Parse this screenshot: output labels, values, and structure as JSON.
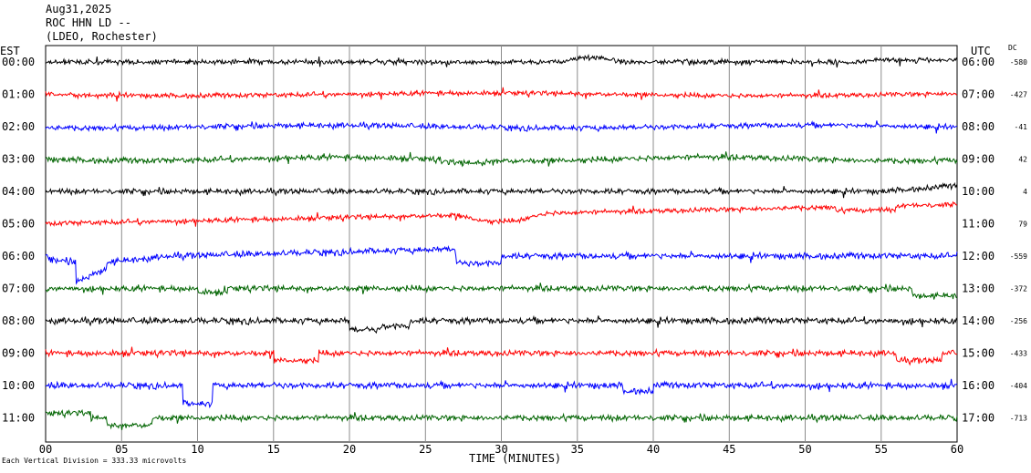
{
  "header": {
    "date": "Aug31,2025",
    "station": "ROC HHN LD --",
    "network": "(LDEO, Rochester)"
  },
  "chart_data": {
    "type": "line",
    "title": "ROC HHN LD --",
    "left_axis_label": "EST",
    "right_axis_label": "UTC",
    "dc_label": "DC",
    "xlabel": "TIME (MINUTES)",
    "xlim": [
      0,
      60
    ],
    "x_ticks": [
      "00",
      "05",
      "10",
      "15",
      "20",
      "25",
      "30",
      "35",
      "40",
      "45",
      "50",
      "55",
      "60"
    ],
    "grid": "vertical every 5 minutes",
    "footer": "Each Vertical Division = 333.33 microvolts",
    "traces": [
      {
        "est": "00:00",
        "utc": "06:00",
        "dc": "-580",
        "color": "#000000"
      },
      {
        "est": "01:00",
        "utc": "07:00",
        "dc": "-427",
        "color": "#ff0000"
      },
      {
        "est": "02:00",
        "utc": "08:00",
        "dc": "-41",
        "color": "#0000ff"
      },
      {
        "est": "03:00",
        "utc": "09:00",
        "dc": "42",
        "color": "#006400"
      },
      {
        "est": "04:00",
        "utc": "10:00",
        "dc": "4",
        "color": "#000000"
      },
      {
        "est": "05:00",
        "utc": "11:00",
        "dc": "79",
        "color": "#ff0000"
      },
      {
        "est": "06:00",
        "utc": "12:00",
        "dc": "-559",
        "color": "#0000ff"
      },
      {
        "est": "07:00",
        "utc": "13:00",
        "dc": "-372",
        "color": "#006400"
      },
      {
        "est": "08:00",
        "utc": "14:00",
        "dc": "-256",
        "color": "#000000"
      },
      {
        "est": "09:00",
        "utc": "15:00",
        "dc": "-433",
        "color": "#ff0000"
      },
      {
        "est": "10:00",
        "utc": "16:00",
        "dc": "-404",
        "color": "#0000ff"
      },
      {
        "est": "11:00",
        "utc": "17:00",
        "dc": "-713",
        "color": "#006400"
      }
    ]
  }
}
